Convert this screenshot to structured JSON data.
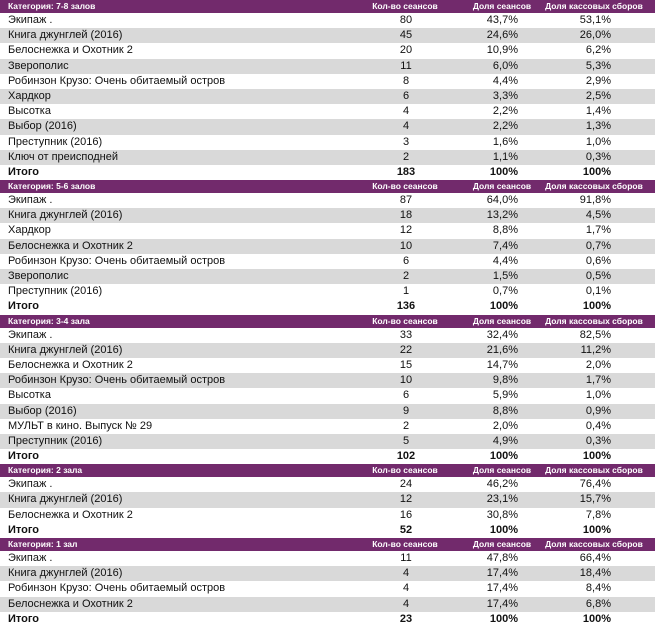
{
  "sections": [
    {
      "category": "Категория: 7-8 залов",
      "columns": [
        "Кол-во сеансов",
        "Доля сеансов",
        "Доля кассовых сборов"
      ],
      "rows": [
        [
          "Экипаж .",
          "80",
          "43,7%",
          "53,1%"
        ],
        [
          "Книга джунглей (2016)",
          "45",
          "24,6%",
          "26,0%"
        ],
        [
          "Белоснежка и Охотник 2",
          "20",
          "10,9%",
          "6,2%"
        ],
        [
          "Зверополис",
          "11",
          "6,0%",
          "5,3%"
        ],
        [
          "Робинзон Крузо: Очень обитаемый остров",
          "8",
          "4,4%",
          "2,9%"
        ],
        [
          "Хардкор",
          "6",
          "3,3%",
          "2,5%"
        ],
        [
          "Высотка",
          "4",
          "2,2%",
          "1,4%"
        ],
        [
          "Выбор (2016)",
          "4",
          "2,2%",
          "1,3%"
        ],
        [
          "Преступник (2016)",
          "3",
          "1,6%",
          "1,0%"
        ],
        [
          "Ключ от преисподней",
          "2",
          "1,1%",
          "0,3%"
        ]
      ],
      "total": [
        "Итого",
        "183",
        "100%",
        "100%"
      ]
    },
    {
      "category": "Категория: 5-6 залов",
      "columns": [
        "Кол-во сеансов",
        "Доля сеансов",
        "Доля кассовых сборов"
      ],
      "rows": [
        [
          "Экипаж .",
          "87",
          "64,0%",
          "91,8%"
        ],
        [
          "Книга джунглей (2016)",
          "18",
          "13,2%",
          "4,5%"
        ],
        [
          "Хардкор",
          "12",
          "8,8%",
          "1,7%"
        ],
        [
          "Белоснежка и Охотник 2",
          "10",
          "7,4%",
          "0,7%"
        ],
        [
          "Робинзон Крузо: Очень обитаемый остров",
          "6",
          "4,4%",
          "0,6%"
        ],
        [
          "Зверополис",
          "2",
          "1,5%",
          "0,5%"
        ],
        [
          "Преступник (2016)",
          "1",
          "0,7%",
          "0,1%"
        ]
      ],
      "total": [
        "Итого",
        "136",
        "100%",
        "100%"
      ]
    },
    {
      "category": "Категория: 3-4 зала",
      "columns": [
        "Кол-во сеансов",
        "Доля сеансов",
        "Доля кассовых сборов"
      ],
      "rows": [
        [
          "Экипаж .",
          "33",
          "32,4%",
          "82,5%"
        ],
        [
          "Книга джунглей (2016)",
          "22",
          "21,6%",
          "11,2%"
        ],
        [
          "Белоснежка и Охотник 2",
          "15",
          "14,7%",
          "2,0%"
        ],
        [
          "Робинзон Крузо: Очень обитаемый остров",
          "10",
          "9,8%",
          "1,7%"
        ],
        [
          "Высотка",
          "6",
          "5,9%",
          "1,0%"
        ],
        [
          "Выбор (2016)",
          "9",
          "8,8%",
          "0,9%"
        ],
        [
          "МУЛЬТ в кино. Выпуск № 29",
          "2",
          "2,0%",
          "0,4%"
        ],
        [
          "Преступник (2016)",
          "5",
          "4,9%",
          "0,3%"
        ]
      ],
      "total": [
        "Итого",
        "102",
        "100%",
        "100%"
      ]
    },
    {
      "category": "Категория: 2 зала",
      "columns": [
        "Кол-во сеансов",
        "Доля сеансов",
        "Доля кассовых сборов"
      ],
      "rows": [
        [
          "Экипаж .",
          "24",
          "46,2%",
          "76,4%"
        ],
        [
          "Книга джунглей (2016)",
          "12",
          "23,1%",
          "15,7%"
        ],
        [
          "Белоснежка и Охотник 2",
          "16",
          "30,8%",
          "7,8%"
        ]
      ],
      "total": [
        "Итого",
        "52",
        "100%",
        "100%"
      ]
    },
    {
      "category": "Категория: 1 зал",
      "columns": [
        "Кол-во сеансов",
        "Доля сеансов",
        "Доля кассовых сборов"
      ],
      "rows": [
        [
          "Экипаж .",
          "11",
          "47,8%",
          "66,4%"
        ],
        [
          "Книга джунглей (2016)",
          "4",
          "17,4%",
          "18,4%"
        ],
        [
          "Робинзон Крузо: Очень обитаемый остров",
          "4",
          "17,4%",
          "8,4%"
        ],
        [
          "Белоснежка и Охотник 2",
          "4",
          "17,4%",
          "6,8%"
        ]
      ],
      "total": [
        "Итого",
        "23",
        "100%",
        "100%"
      ]
    }
  ]
}
